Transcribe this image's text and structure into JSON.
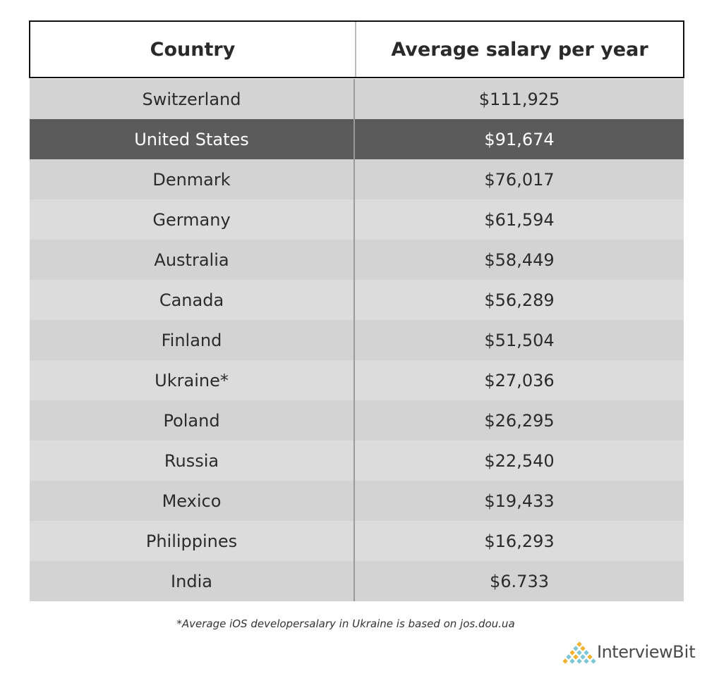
{
  "table": {
    "header": [
      "Country",
      "Average salary per year"
    ],
    "rows": [
      [
        "Switzerland",
        "$111,925"
      ],
      [
        "United States",
        "$91,674"
      ],
      [
        "Denmark",
        "$76,017"
      ],
      [
        "Germany",
        "$61,594"
      ],
      [
        "Australia",
        "$58,449"
      ],
      [
        "Canada",
        "$56,289"
      ],
      [
        "Finland",
        "$51,504"
      ],
      [
        "Ukraine*",
        "$27,036"
      ],
      [
        "Poland",
        "$26,295"
      ],
      [
        "Russia",
        "$22,540"
      ],
      [
        "Mexico",
        "$19,433"
      ],
      [
        "Philippines",
        "$16,293"
      ],
      [
        "India",
        "$6.733"
      ]
    ]
  },
  "footnote": "*Average iOS developersalary in Ukraine is based on jos.dou.ua",
  "logo": {
    "part1": "Interview",
    "part2": "Bit"
  }
}
